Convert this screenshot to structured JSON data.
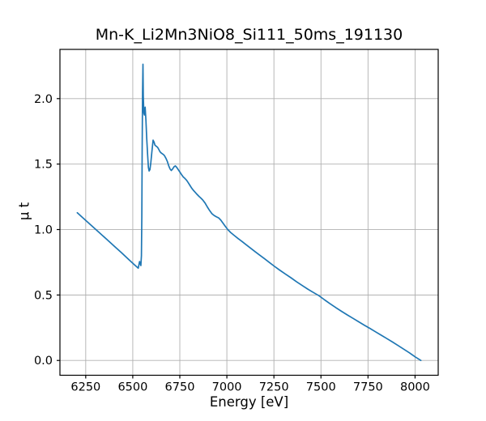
{
  "figure": {
    "background": "#ffffff"
  },
  "chart_data": {
    "type": "line",
    "title": "Mn-K_Li2Mn3NiO8_Si111_50ms_191130",
    "xlabel": "Energy [eV]",
    "ylabel": "μ t",
    "xlim": [
      6113,
      8123
    ],
    "ylim": [
      -0.113,
      2.376
    ],
    "x_ticks": [
      6250,
      6500,
      6750,
      7000,
      7250,
      7500,
      7750,
      8000
    ],
    "y_ticks": [
      0.0,
      0.5,
      1.0,
      1.5,
      2.0
    ],
    "grid": true,
    "grid_color": "#b0b0b0",
    "line_color": "#1f77b4",
    "axis_color": "#000000",
    "legend": "none",
    "series": [
      {
        "name": "mu_t_spectrum",
        "points": [
          [
            6205,
            1.128
          ],
          [
            6240,
            1.083
          ],
          [
            6280,
            1.031
          ],
          [
            6320,
            0.979
          ],
          [
            6360,
            0.927
          ],
          [
            6400,
            0.875
          ],
          [
            6440,
            0.823
          ],
          [
            6480,
            0.769
          ],
          [
            6510,
            0.73
          ],
          [
            6529,
            0.705
          ],
          [
            6536,
            0.755
          ],
          [
            6540,
            0.74
          ],
          [
            6543,
            0.725
          ],
          [
            6546,
            0.8
          ],
          [
            6548,
            1.1
          ],
          [
            6550,
            1.6
          ],
          [
            6552,
            2.05
          ],
          [
            6554,
            2.262
          ],
          [
            6556,
            2.02
          ],
          [
            6559,
            1.89
          ],
          [
            6562,
            1.875
          ],
          [
            6566,
            1.935
          ],
          [
            6570,
            1.83
          ],
          [
            6574,
            1.7
          ],
          [
            6579,
            1.565
          ],
          [
            6583,
            1.475
          ],
          [
            6587,
            1.447
          ],
          [
            6591,
            1.458
          ],
          [
            6596,
            1.51
          ],
          [
            6602,
            1.6
          ],
          [
            6608,
            1.683
          ],
          [
            6613,
            1.668
          ],
          [
            6618,
            1.645
          ],
          [
            6625,
            1.636
          ],
          [
            6632,
            1.628
          ],
          [
            6638,
            1.612
          ],
          [
            6645,
            1.594
          ],
          [
            6652,
            1.584
          ],
          [
            6660,
            1.576
          ],
          [
            6668,
            1.566
          ],
          [
            6676,
            1.545
          ],
          [
            6684,
            1.518
          ],
          [
            6691,
            1.487
          ],
          [
            6698,
            1.463
          ],
          [
            6705,
            1.451
          ],
          [
            6712,
            1.463
          ],
          [
            6719,
            1.479
          ],
          [
            6726,
            1.486
          ],
          [
            6733,
            1.476
          ],
          [
            6741,
            1.459
          ],
          [
            6750,
            1.44
          ],
          [
            6759,
            1.42
          ],
          [
            6768,
            1.402
          ],
          [
            6777,
            1.39
          ],
          [
            6786,
            1.376
          ],
          [
            6795,
            1.357
          ],
          [
            6804,
            1.337
          ],
          [
            6813,
            1.317
          ],
          [
            6822,
            1.3
          ],
          [
            6831,
            1.286
          ],
          [
            6841,
            1.27
          ],
          [
            6851,
            1.254
          ],
          [
            6861,
            1.241
          ],
          [
            6872,
            1.226
          ],
          [
            6884,
            1.203
          ],
          [
            6896,
            1.173
          ],
          [
            6908,
            1.146
          ],
          [
            6920,
            1.122
          ],
          [
            6932,
            1.108
          ],
          [
            6944,
            1.098
          ],
          [
            6956,
            1.089
          ],
          [
            6968,
            1.072
          ],
          [
            6980,
            1.048
          ],
          [
            6992,
            1.024
          ],
          [
            7005,
            1.0
          ],
          [
            7020,
            0.978
          ],
          [
            7040,
            0.954
          ],
          [
            7060,
            0.931
          ],
          [
            7080,
            0.909
          ],
          [
            7100,
            0.887
          ],
          [
            7125,
            0.859
          ],
          [
            7150,
            0.831
          ],
          [
            7175,
            0.804
          ],
          [
            7200,
            0.777
          ],
          [
            7225,
            0.749
          ],
          [
            7250,
            0.722
          ],
          [
            7280,
            0.691
          ],
          [
            7310,
            0.661
          ],
          [
            7340,
            0.632
          ],
          [
            7370,
            0.602
          ],
          [
            7400,
            0.573
          ],
          [
            7430,
            0.545
          ],
          [
            7460,
            0.519
          ],
          [
            7490,
            0.494
          ],
          [
            7520,
            0.462
          ],
          [
            7550,
            0.432
          ],
          [
            7580,
            0.403
          ],
          [
            7610,
            0.375
          ],
          [
            7640,
            0.348
          ],
          [
            7670,
            0.322
          ],
          [
            7700,
            0.296
          ],
          [
            7730,
            0.27
          ],
          [
            7760,
            0.245
          ],
          [
            7790,
            0.219
          ],
          [
            7820,
            0.193
          ],
          [
            7850,
            0.167
          ],
          [
            7880,
            0.141
          ],
          [
            7910,
            0.114
          ],
          [
            7940,
            0.086
          ],
          [
            7970,
            0.058
          ],
          [
            8000,
            0.028
          ],
          [
            8031,
            0.0
          ]
        ]
      }
    ]
  }
}
